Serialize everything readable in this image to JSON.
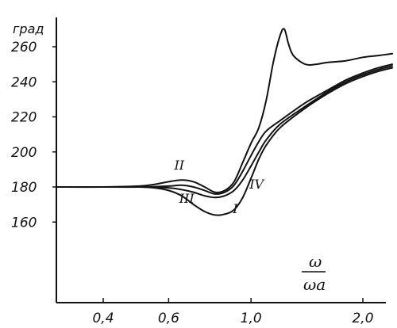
{
  "chart_data": {
    "type": "line",
    "title": "",
    "ylabel": "град",
    "xlabel_num": "ω",
    "xlabel_den": "ωa",
    "x_ticks": [
      0.4,
      0.6,
      1.0,
      2.0
    ],
    "x_tick_labels": [
      "0,4",
      "0,6",
      "1,0",
      "2,0"
    ],
    "y_ticks": [
      160,
      180,
      200,
      220,
      240,
      260
    ],
    "y_tick_labels": [
      "160",
      "180",
      "200",
      "220",
      "240",
      "260"
    ],
    "xlim": [
      0.3,
      2.4
    ],
    "ylim": [
      140,
      272
    ],
    "grid": false,
    "series": [
      {
        "name": "I",
        "points": [
          [
            0.3,
            180
          ],
          [
            0.4,
            180
          ],
          [
            0.5,
            180
          ],
          [
            0.55,
            179.5
          ],
          [
            0.6,
            178
          ],
          [
            0.65,
            175
          ],
          [
            0.7,
            170
          ],
          [
            0.75,
            166
          ],
          [
            0.8,
            164
          ],
          [
            0.85,
            164.5
          ],
          [
            0.9,
            167
          ],
          [
            0.95,
            174
          ],
          [
            1.0,
            185
          ],
          [
            1.05,
            196
          ],
          [
            1.1,
            204
          ],
          [
            1.2,
            214
          ],
          [
            1.4,
            225
          ],
          [
            1.6,
            233
          ],
          [
            1.8,
            239
          ],
          [
            2.0,
            243
          ],
          [
            2.2,
            246
          ],
          [
            2.4,
            248
          ]
        ]
      },
      {
        "name": "II",
        "points": [
          [
            0.3,
            180
          ],
          [
            0.4,
            180
          ],
          [
            0.5,
            180.5
          ],
          [
            0.55,
            181.5
          ],
          [
            0.6,
            183
          ],
          [
            0.65,
            184
          ],
          [
            0.7,
            183
          ],
          [
            0.75,
            180
          ],
          [
            0.8,
            177
          ],
          [
            0.85,
            178
          ],
          [
            0.9,
            183
          ],
          [
            0.95,
            194
          ],
          [
            1.0,
            205
          ],
          [
            1.05,
            214
          ],
          [
            1.1,
            230
          ],
          [
            1.15,
            252
          ],
          [
            1.2,
            267
          ],
          [
            1.23,
            270
          ],
          [
            1.26,
            262
          ],
          [
            1.3,
            255
          ],
          [
            1.4,
            250
          ],
          [
            1.5,
            250
          ],
          [
            1.6,
            251
          ],
          [
            1.8,
            252
          ],
          [
            2.0,
            254
          ],
          [
            2.2,
            255
          ],
          [
            2.4,
            256
          ]
        ]
      },
      {
        "name": "III",
        "points": [
          [
            0.3,
            180
          ],
          [
            0.4,
            180
          ],
          [
            0.5,
            180
          ],
          [
            0.6,
            179.5
          ],
          [
            0.65,
            178.5
          ],
          [
            0.7,
            177
          ],
          [
            0.75,
            175
          ],
          [
            0.8,
            174
          ],
          [
            0.85,
            175
          ],
          [
            0.9,
            178
          ],
          [
            0.95,
            184
          ],
          [
            1.0,
            192
          ],
          [
            1.05,
            200
          ],
          [
            1.1,
            207
          ],
          [
            1.2,
            216
          ],
          [
            1.4,
            226
          ],
          [
            1.6,
            234
          ],
          [
            1.8,
            240
          ],
          [
            2.0,
            244
          ],
          [
            2.2,
            247
          ],
          [
            2.4,
            249
          ]
        ]
      },
      {
        "name": "IV",
        "points": [
          [
            0.3,
            180
          ],
          [
            0.4,
            180
          ],
          [
            0.5,
            180
          ],
          [
            0.6,
            180.5
          ],
          [
            0.65,
            181
          ],
          [
            0.7,
            180
          ],
          [
            0.75,
            178
          ],
          [
            0.8,
            176
          ],
          [
            0.85,
            177
          ],
          [
            0.9,
            181
          ],
          [
            0.95,
            189
          ],
          [
            1.0,
            198
          ],
          [
            1.05,
            206
          ],
          [
            1.1,
            212
          ],
          [
            1.2,
            218
          ],
          [
            1.4,
            228
          ],
          [
            1.6,
            235
          ],
          [
            1.8,
            241
          ],
          [
            2.0,
            245
          ],
          [
            2.2,
            248
          ],
          [
            2.4,
            250
          ]
        ]
      }
    ]
  }
}
